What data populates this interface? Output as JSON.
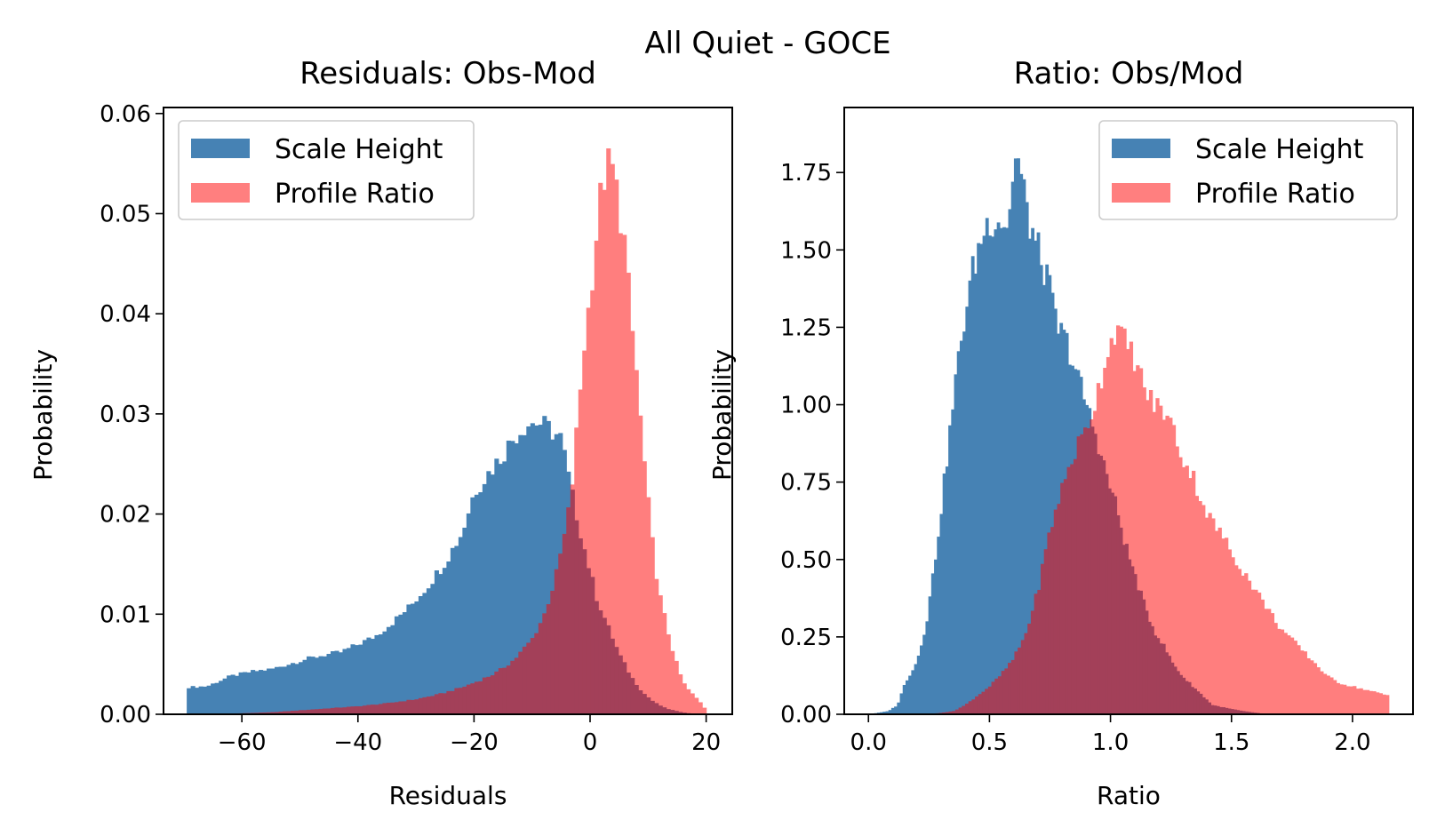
{
  "figure": {
    "suptitle": "All Quiet - GOCE"
  },
  "colors": {
    "scale_height": "#4682b4",
    "profile_ratio": "#ff7f7f",
    "overlap": "#a03a52"
  },
  "chart_data": [
    {
      "type": "bar",
      "title": "Residuals: Obs-Mod",
      "xlabel": "Residuals",
      "ylabel": "Probability",
      "xlim": [
        -73.5,
        24.5
      ],
      "ylim": [
        0,
        0.0606
      ],
      "xticks": [
        -60,
        -40,
        -20,
        0,
        20
      ],
      "xtick_labels": [
        "−60",
        "−40",
        "−20",
        "0",
        "20"
      ],
      "yticks": [
        0,
        0.01,
        0.02,
        0.03,
        0.04,
        0.05,
        0.06
      ],
      "ytick_labels": [
        "0.00",
        "0.01",
        "0.02",
        "0.03",
        "0.04",
        "0.05",
        "0.06"
      ],
      "legend": {
        "loc": "upper left",
        "entries": [
          "Scale Height",
          "Profile Ratio"
        ]
      },
      "grid": false,
      "series": [
        {
          "name": "Scale Height",
          "color": "#4682b4",
          "bin_edges": [
            -69.5,
            -30,
            -20,
            -10,
            -6,
            0,
            20
          ],
          "points": [
            [
              -69.5,
              0.0027
            ],
            [
              -66,
              0.0028
            ],
            [
              -62,
              0.0038
            ],
            [
              -58,
              0.0043
            ],
            [
              -55,
              0.0045
            ],
            [
              -52,
              0.005
            ],
            [
              -49,
              0.0055
            ],
            [
              -46,
              0.0059
            ],
            [
              -43,
              0.0062
            ],
            [
              -40,
              0.007
            ],
            [
              -37,
              0.0078
            ],
            [
              -34,
              0.0092
            ],
            [
              -31,
              0.0108
            ],
            [
              -28,
              0.0128
            ],
            [
              -25,
              0.0152
            ],
            [
              -22,
              0.0182
            ],
            [
              -20,
              0.0222
            ],
            [
              -17,
              0.0245
            ],
            [
              -15,
              0.026
            ],
            [
              -13,
              0.0278
            ],
            [
              -11,
              0.029
            ],
            [
              -9,
              0.0292
            ],
            [
              -7,
              0.0285
            ],
            [
              -5,
              0.0275
            ],
            [
              -3,
              0.0215
            ],
            [
              -1,
              0.0165
            ],
            [
              1,
              0.0118
            ],
            [
              3,
              0.0088
            ],
            [
              5,
              0.006
            ],
            [
              7,
              0.0038
            ],
            [
              9,
              0.0022
            ],
            [
              11,
              0.0012
            ],
            [
              13,
              0.0006
            ],
            [
              15,
              0.0003
            ],
            [
              17,
              0.0001
            ],
            [
              20,
              0
            ]
          ]
        },
        {
          "name": "Profile Ratio",
          "color": "#ff7f7f",
          "points": [
            [
              -69.5,
              0
            ],
            [
              -60,
              0.0001
            ],
            [
              -55,
              0.0002
            ],
            [
              -50,
              0.0004
            ],
            [
              -45,
              0.0006
            ],
            [
              -40,
              0.0008
            ],
            [
              -35,
              0.0011
            ],
            [
              -30,
              0.0015
            ],
            [
              -26,
              0.002
            ],
            [
              -22,
              0.0027
            ],
            [
              -19,
              0.0034
            ],
            [
              -16,
              0.0042
            ],
            [
              -13,
              0.0055
            ],
            [
              -10,
              0.0075
            ],
            [
              -8,
              0.0098
            ],
            [
              -6,
              0.0135
            ],
            [
              -4,
              0.019
            ],
            [
              -3,
              0.0235
            ],
            [
              -2,
              0.0305
            ],
            [
              -1,
              0.037
            ],
            [
              0,
              0.0418
            ],
            [
              1,
              0.0475
            ],
            [
              2,
              0.0528
            ],
            [
              3,
              0.0548
            ],
            [
              4,
              0.0542
            ],
            [
              5,
              0.0505
            ],
            [
              6,
              0.0468
            ],
            [
              7,
              0.0395
            ],
            [
              8,
              0.034
            ],
            [
              9,
              0.027
            ],
            [
              10,
              0.021
            ],
            [
              11,
              0.0155
            ],
            [
              12,
              0.0118
            ],
            [
              13,
              0.0092
            ],
            [
              14,
              0.0068
            ],
            [
              15,
              0.0048
            ],
            [
              16,
              0.0032
            ],
            [
              17,
              0.0024
            ],
            [
              18,
              0.0018
            ],
            [
              19,
              0.0012
            ],
            [
              20,
              0.0004
            ]
          ]
        }
      ]
    },
    {
      "type": "bar",
      "title": "Ratio: Obs/Mod",
      "xlabel": "Ratio",
      "ylabel": "Probability",
      "xlim": [
        -0.1,
        2.25
      ],
      "ylim": [
        0,
        1.96
      ],
      "xticks": [
        0,
        0.5,
        1,
        1.5,
        2
      ],
      "xtick_labels": [
        "0.0",
        "0.5",
        "1.0",
        "1.5",
        "2.0"
      ],
      "yticks": [
        0,
        0.25,
        0.5,
        0.75,
        1,
        1.25,
        1.5,
        1.75
      ],
      "ytick_labels": [
        "0.00",
        "0.25",
        "0.50",
        "0.75",
        "1.00",
        "1.25",
        "1.50",
        "1.75"
      ],
      "legend": {
        "loc": "upper right",
        "entries": [
          "Scale Height",
          "Profile Ratio"
        ]
      },
      "grid": false,
      "series": [
        {
          "name": "Scale Height",
          "color": "#4682b4",
          "points": [
            [
              0,
              0
            ],
            [
              0.08,
              0.01
            ],
            [
              0.12,
              0.03
            ],
            [
              0.15,
              0.1
            ],
            [
              0.2,
              0.17
            ],
            [
              0.24,
              0.3
            ],
            [
              0.28,
              0.53
            ],
            [
              0.32,
              0.8
            ],
            [
              0.36,
              1.08
            ],
            [
              0.4,
              1.3
            ],
            [
              0.43,
              1.43
            ],
            [
              0.47,
              1.55
            ],
            [
              0.5,
              1.6
            ],
            [
              0.54,
              1.6
            ],
            [
              0.58,
              1.58
            ],
            [
              0.6,
              1.8
            ],
            [
              0.62,
              1.78
            ],
            [
              0.66,
              1.6
            ],
            [
              0.7,
              1.5
            ],
            [
              0.74,
              1.4
            ],
            [
              0.78,
              1.25
            ],
            [
              0.82,
              1.2
            ],
            [
              0.86,
              1.1
            ],
            [
              0.9,
              1.0
            ],
            [
              0.94,
              0.9
            ],
            [
              0.98,
              0.78
            ],
            [
              1.02,
              0.68
            ],
            [
              1.06,
              0.55
            ],
            [
              1.1,
              0.45
            ],
            [
              1.14,
              0.35
            ],
            [
              1.18,
              0.27
            ],
            [
              1.22,
              0.22
            ],
            [
              1.26,
              0.16
            ],
            [
              1.3,
              0.12
            ],
            [
              1.34,
              0.09
            ],
            [
              1.38,
              0.06
            ],
            [
              1.42,
              0.03
            ],
            [
              1.48,
              0.02
            ],
            [
              1.55,
              0.01
            ],
            [
              1.65,
              0
            ]
          ]
        },
        {
          "name": "Profile Ratio",
          "color": "#ff7f7f",
          "points": [
            [
              0.25,
              0
            ],
            [
              0.35,
              0.01
            ],
            [
              0.4,
              0.03
            ],
            [
              0.45,
              0.06
            ],
            [
              0.5,
              0.09
            ],
            [
              0.55,
              0.13
            ],
            [
              0.6,
              0.18
            ],
            [
              0.65,
              0.26
            ],
            [
              0.7,
              0.4
            ],
            [
              0.74,
              0.56
            ],
            [
              0.78,
              0.68
            ],
            [
              0.82,
              0.78
            ],
            [
              0.86,
              0.86
            ],
            [
              0.9,
              0.92
            ],
            [
              0.94,
              1.02
            ],
            [
              0.98,
              1.15
            ],
            [
              1.02,
              1.25
            ],
            [
              1.06,
              1.2
            ],
            [
              1.1,
              1.15
            ],
            [
              1.14,
              1.05
            ],
            [
              1.18,
              1.0
            ],
            [
              1.22,
              0.98
            ],
            [
              1.26,
              0.92
            ],
            [
              1.3,
              0.82
            ],
            [
              1.34,
              0.77
            ],
            [
              1.38,
              0.68
            ],
            [
              1.42,
              0.62
            ],
            [
              1.46,
              0.58
            ],
            [
              1.5,
              0.52
            ],
            [
              1.55,
              0.46
            ],
            [
              1.6,
              0.4
            ],
            [
              1.65,
              0.34
            ],
            [
              1.7,
              0.28
            ],
            [
              1.75,
              0.24
            ],
            [
              1.8,
              0.2
            ],
            [
              1.85,
              0.16
            ],
            [
              1.9,
              0.12
            ],
            [
              1.95,
              0.1
            ],
            [
              2.0,
              0.09
            ],
            [
              2.05,
              0.08
            ],
            [
              2.1,
              0.07
            ],
            [
              2.15,
              0.06
            ]
          ]
        }
      ]
    }
  ]
}
